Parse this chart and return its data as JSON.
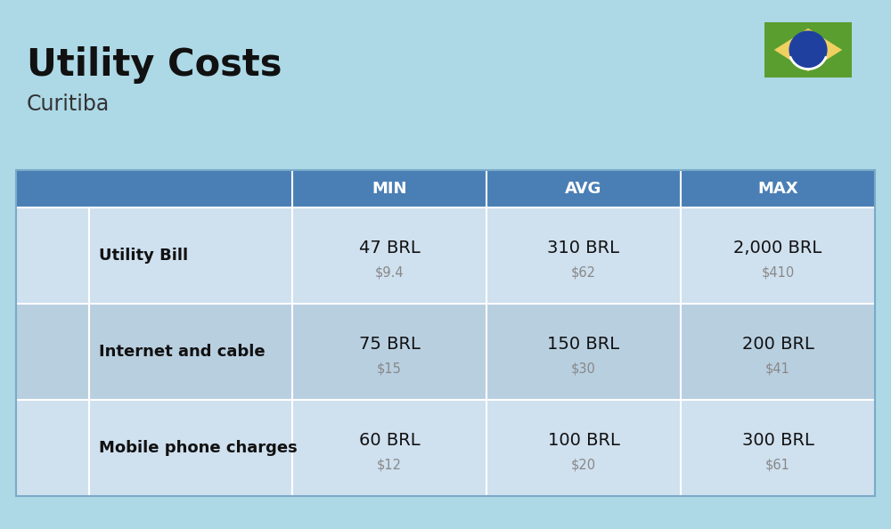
{
  "title": "Utility Costs",
  "subtitle": "Curitiba",
  "background_color": "#add8e6",
  "header_bg_color": "#4a7fb5",
  "header_text_color": "#ffffff",
  "row_bg_color_1": "#cfe0ef",
  "row_bg_color_2": "#b8cfe0",
  "col_headers": [
    "MIN",
    "AVG",
    "MAX"
  ],
  "rows": [
    {
      "label": "Utility Bill",
      "min_brl": "47 BRL",
      "min_usd": "$9.4",
      "avg_brl": "310 BRL",
      "avg_usd": "$62",
      "max_brl": "2,000 BRL",
      "max_usd": "$410"
    },
    {
      "label": "Internet and cable",
      "min_brl": "75 BRL",
      "min_usd": "$15",
      "avg_brl": "150 BRL",
      "avg_usd": "$30",
      "max_brl": "200 BRL",
      "max_usd": "$41"
    },
    {
      "label": "Mobile phone charges",
      "min_brl": "60 BRL",
      "min_usd": "$12",
      "avg_brl": "100 BRL",
      "avg_usd": "$20",
      "max_brl": "300 BRL",
      "max_usd": "$61"
    }
  ],
  "flag_colors": {
    "green": "#5a9e2f",
    "yellow": "#f0d060",
    "blue": "#2040a0",
    "white": "#ffffff"
  },
  "title_fontsize": 30,
  "subtitle_fontsize": 17,
  "header_fontsize": 13,
  "label_fontsize": 13,
  "brl_fontsize": 14,
  "usd_fontsize": 10.5
}
